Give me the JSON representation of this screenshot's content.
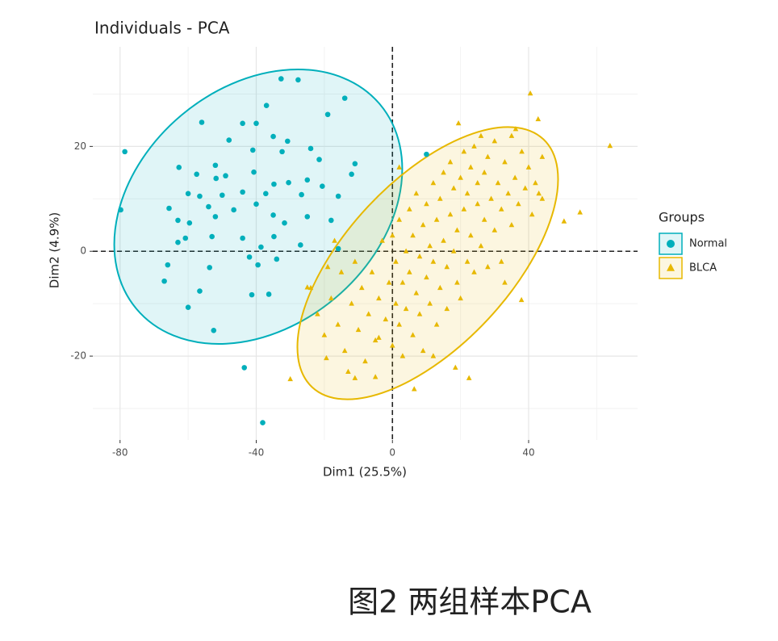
{
  "chart_data": {
    "type": "scatter",
    "title": "Individuals - PCA",
    "x_label": "Dim1 (25.5%)",
    "y_label": "Dim2 (4.9%)",
    "legend_title": "Groups",
    "legend_position": "right",
    "xlim": [
      -88,
      72
    ],
    "ylim": [
      -36,
      39
    ],
    "xticks": [
      -80,
      -40,
      0,
      40
    ],
    "yticks": [
      -20,
      0,
      20
    ],
    "x_minor_grid": [
      -60,
      -20,
      20,
      60
    ],
    "y_minor_grid": [
      -30,
      -10,
      10,
      30
    ],
    "grid": true,
    "reference_lines": {
      "x": 0,
      "y": 0
    },
    "series": [
      {
        "name": "Normal",
        "color": "#00AFBB",
        "marker": "circle",
        "x": [
          -78.6,
          -79.8,
          -32.7,
          -27.7,
          -14,
          -37,
          -19,
          -56,
          -44,
          -40,
          -48,
          -35,
          -30.8,
          -24,
          -41,
          -32.4,
          -21.5,
          -62.7,
          -52,
          -11,
          -49,
          -40.7,
          -57.5,
          -51.8,
          -12,
          -25,
          -20.6,
          -34.8,
          -30.5,
          -60,
          -56.6,
          -50,
          -44,
          -37.2,
          -26.7,
          -15.9,
          -65.6,
          -54,
          -46.6,
          -35,
          -63,
          -59.6,
          -52,
          -25,
          -18,
          -31.7,
          -53,
          -44,
          -60.8,
          -34.8,
          -63,
          -27,
          -38.6,
          -15.9,
          -42,
          -34,
          -66,
          -53.7,
          -39.5,
          -67,
          -56.6,
          -36.3,
          -41.3,
          -60,
          -52.5,
          -43.5,
          -38.1,
          10,
          -40
        ],
        "values": [
          19,
          7.9,
          32.9,
          32.7,
          29.2,
          27.8,
          26.1,
          24.6,
          24.4,
          24.4,
          21.2,
          21.9,
          21,
          19.6,
          19.3,
          19,
          17.5,
          16,
          16.4,
          16.7,
          14.4,
          15.1,
          14.7,
          13.9,
          14.7,
          13.6,
          12.4,
          12.8,
          13.1,
          11,
          10.5,
          10.7,
          11.3,
          11,
          10.8,
          10.5,
          8.2,
          8.5,
          7.9,
          6.9,
          5.9,
          5.4,
          6.6,
          6.6,
          5.9,
          5.4,
          2.8,
          2.5,
          2.5,
          2.8,
          1.7,
          1.2,
          0.8,
          0.5,
          -1.1,
          -1.5,
          -2.6,
          -3.1,
          -2.6,
          -5.7,
          -7.6,
          -8.2,
          -8.3,
          -10.7,
          -15.1,
          -22.2,
          -32.7,
          18.5,
          9
        ]
      },
      {
        "name": "BLCA",
        "color": "#E7B800",
        "marker": "triangle",
        "x": [
          40.5,
          63.9,
          19.4,
          36.2,
          42.8,
          55.1,
          50.4,
          37.9,
          -30,
          6.4,
          22.5,
          18.5,
          -11,
          -25,
          -19.4,
          -4,
          -24,
          -22,
          -20,
          -18,
          -16,
          -15,
          -14,
          -12,
          -11,
          -10,
          -9,
          -8,
          -7,
          -6,
          -5,
          -4,
          -3,
          -2,
          -1,
          0,
          0,
          1,
          1,
          2,
          2,
          3,
          3,
          4,
          4,
          5,
          5,
          6,
          6,
          7,
          7,
          8,
          8,
          9,
          9,
          10,
          10,
          11,
          11,
          12,
          12,
          13,
          13,
          14,
          14,
          15,
          15,
          16,
          16,
          17,
          17,
          18,
          18,
          19,
          19,
          20,
          20,
          21,
          21,
          22,
          22,
          23,
          23,
          24,
          24,
          25,
          25,
          26,
          26,
          27,
          27,
          28,
          28,
          29,
          30,
          30,
          31,
          32,
          32,
          33,
          34,
          35,
          35,
          36,
          37,
          38,
          39,
          40,
          41,
          42,
          43,
          44,
          -19,
          -13,
          -17,
          2,
          -5,
          33,
          12,
          44
        ],
        "values": [
          30.1,
          20.1,
          24.4,
          23.3,
          25.2,
          7.4,
          5.7,
          -9.3,
          -24.4,
          -26.3,
          -24.2,
          -22.2,
          -24.2,
          -6.9,
          -20.4,
          -16.5,
          -7,
          -12,
          -16,
          -9,
          -14,
          -4,
          -19,
          -10,
          -2,
          -15,
          -7,
          -21,
          -12,
          -4,
          -17,
          -9,
          2,
          -13,
          -6,
          -18,
          3,
          -10,
          -2,
          -14,
          6,
          -6,
          -20,
          0,
          -11,
          8,
          -4,
          -16,
          3,
          -8,
          11,
          -1,
          -12,
          5,
          -19,
          -5,
          9,
          1,
          -10,
          13,
          -2,
          6,
          -14,
          -7,
          10,
          2,
          15,
          -3,
          -11,
          7,
          17,
          0,
          12,
          -6,
          4,
          14,
          -9,
          8,
          19,
          -2,
          11,
          16,
          3,
          -4,
          20,
          9,
          13,
          1,
          22,
          6,
          15,
          -3,
          18,
          10,
          4,
          21,
          13,
          8,
          -2,
          17,
          11,
          5,
          22,
          14,
          9,
          19,
          12,
          16,
          7,
          13,
          11,
          18,
          -3,
          -23,
          2,
          16,
          -24,
          -6,
          -20,
          10
        ]
      }
    ],
    "caption": "图2 两组样本PCA"
  }
}
